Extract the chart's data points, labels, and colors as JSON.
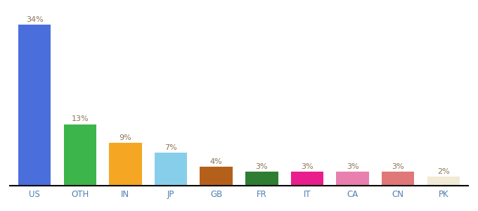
{
  "categories": [
    "US",
    "OTH",
    "IN",
    "JP",
    "GB",
    "FR",
    "IT",
    "CA",
    "CN",
    "PK"
  ],
  "values": [
    34,
    13,
    9,
    7,
    4,
    3,
    3,
    3,
    3,
    2
  ],
  "colors": [
    "#4a6fdc",
    "#3cb54a",
    "#f5a623",
    "#87ceeb",
    "#b5601a",
    "#2e7d32",
    "#e91e8c",
    "#e87faf",
    "#e07878",
    "#f0ead6"
  ],
  "label_color": "#8B7355",
  "label_fontsize": 8.0,
  "bar_width": 0.72,
  "ylim": [
    0,
    37
  ],
  "figsize": [
    6.8,
    3.0
  ],
  "dpi": 100,
  "tick_fontsize": 8.5,
  "tick_color": "#5080b0"
}
